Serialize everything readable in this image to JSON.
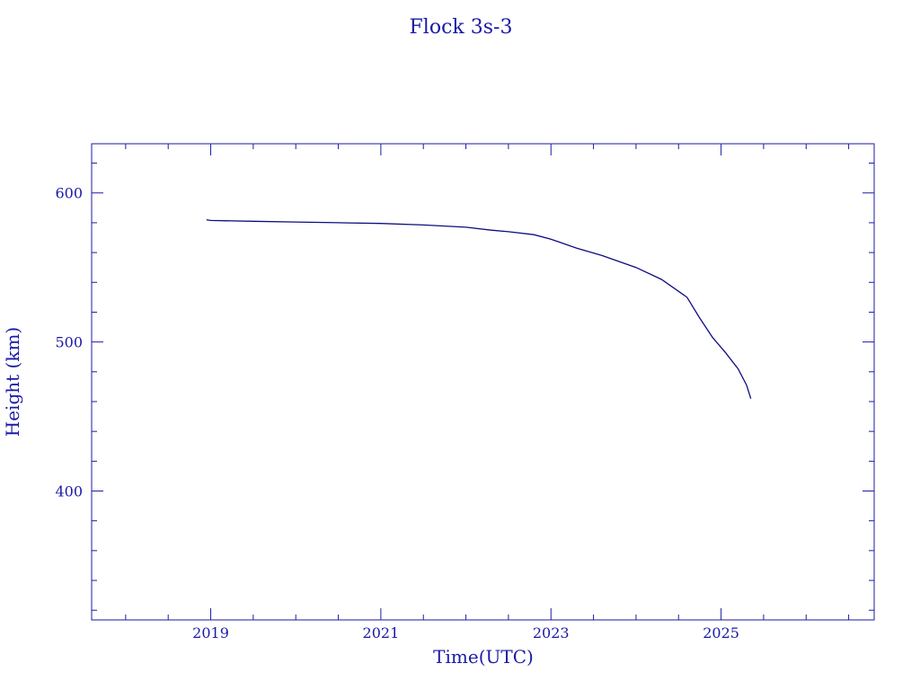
{
  "chart_data": {
    "type": "line",
    "title": "Flock 3s-3",
    "xlabel": "Time(UTC)",
    "ylabel": "Height (km)",
    "xlim": [
      2017.6,
      2026.8
    ],
    "ylim": [
      313.5,
      633
    ],
    "x_major_ticks": [
      2019,
      2021,
      2023,
      2025
    ],
    "x_tick_labels": [
      "2019",
      "2021",
      "2023",
      "2025"
    ],
    "y_major_ticks": [
      400,
      500,
      600
    ],
    "y_tick_labels": [
      "400",
      "500",
      "600"
    ],
    "grid": false,
    "colors": {
      "foreground": "#1a1aa6",
      "line": "#0d0d80"
    },
    "series": [
      {
        "x": [
          2018.95,
          2019.0,
          2019.5,
          2020.0,
          2020.5,
          2021.0,
          2021.5,
          2022.0,
          2022.3,
          2022.5,
          2022.8,
          2023.0,
          2023.1,
          2023.3,
          2023.6,
          2024.0,
          2024.3,
          2024.6,
          2024.75,
          2024.9,
          2025.05,
          2025.2,
          2025.3,
          2025.35
        ],
        "y": [
          582,
          581.5,
          581,
          580.5,
          580,
          579.5,
          578.5,
          577,
          575,
          574,
          572,
          569,
          567,
          563,
          558,
          550,
          542,
          530,
          516,
          503,
          493,
          482,
          471,
          462
        ]
      }
    ]
  }
}
